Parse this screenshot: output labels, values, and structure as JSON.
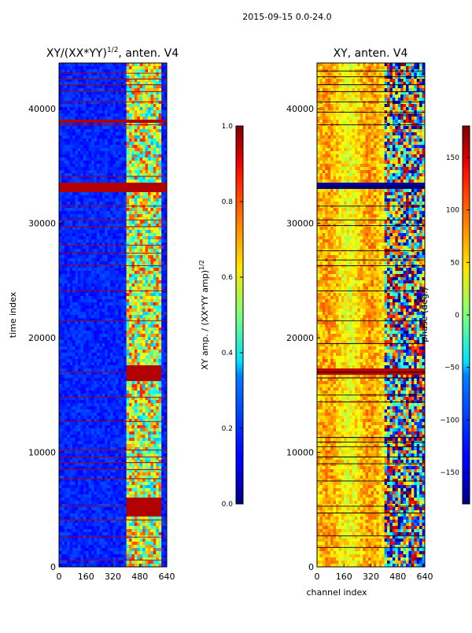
{
  "suptitle": "2015-09-15 0.0-24.0",
  "chart_data": [
    {
      "type": "heatmap",
      "title": "XY/(XX*YY)^1/2, anten. V4",
      "title_main": "XY/(XX*YY)",
      "title_exp": "1/2",
      "title_tail": ", anten. V4",
      "xlabel": "",
      "ylabel": "time index",
      "xlim": [
        0,
        640
      ],
      "ylim": [
        0,
        44000
      ],
      "xticks": [
        0,
        160,
        320,
        480,
        640
      ],
      "yticks": [
        0,
        10000,
        20000,
        30000,
        40000
      ],
      "colormap": "jet",
      "colorbar": {
        "label_main": "XY amp. / (XX*YY amp)",
        "label_exp": "1/2",
        "vmin": 0.0,
        "vmax": 1.0,
        "ticks": [
          0.0,
          0.2,
          0.4,
          0.6,
          0.8,
          1.0
        ],
        "tick_labels": [
          "0.0",
          "0.2",
          "0.4",
          "0.6",
          "0.8",
          "1.0"
        ]
      },
      "features": {
        "background_value": 0.12,
        "active_channel_range": [
          400,
          610
        ],
        "saturated_time_bands": [
          [
            32800,
            33500
          ],
          [
            38800,
            39100
          ],
          [
            16300,
            17500
          ],
          [
            4500,
            6000
          ]
        ],
        "flagged_time_rows": [
          600,
          2600,
          4100,
          5300,
          7700,
          8500,
          9100,
          9600,
          10200,
          12700,
          14800,
          17000,
          21500,
          24100,
          26300,
          27400,
          28100,
          29700,
          30300,
          31500,
          34100,
          38600,
          40600,
          41500,
          42100,
          42600,
          43100
        ]
      }
    },
    {
      "type": "heatmap",
      "title": "XY, anten. V4",
      "xlabel": "channel index",
      "ylabel": "",
      "xlim": [
        0,
        640
      ],
      "ylim": [
        0,
        44000
      ],
      "xticks": [
        0,
        160,
        320,
        480,
        640
      ],
      "yticks": [
        0,
        10000,
        20000,
        30000,
        40000
      ],
      "colormap": "jet",
      "colorbar": {
        "label": "phase (deg.)",
        "vmin": -180,
        "vmax": 180,
        "ticks": [
          -150,
          -100,
          -50,
          0,
          50,
          100,
          150
        ],
        "tick_labels": [
          "−150",
          "−100",
          "−50",
          "0",
          "50",
          "100",
          "150"
        ]
      },
      "features": {
        "background_phase_range": [
          30,
          90
        ],
        "noisy_channel_range": [
          400,
          640
        ],
        "flagged_time_rows": [
          1700,
          2700,
          4700,
          5300,
          7500,
          9000,
          9600,
          10500,
          10900,
          11300,
          14400,
          15000,
          16500,
          17000,
          19500,
          21500,
          24100,
          26300,
          26800,
          27600,
          29800,
          30300,
          31500,
          33200,
          38600,
          39700,
          40600,
          41500,
          42100,
          42800,
          43300
        ]
      }
    }
  ]
}
